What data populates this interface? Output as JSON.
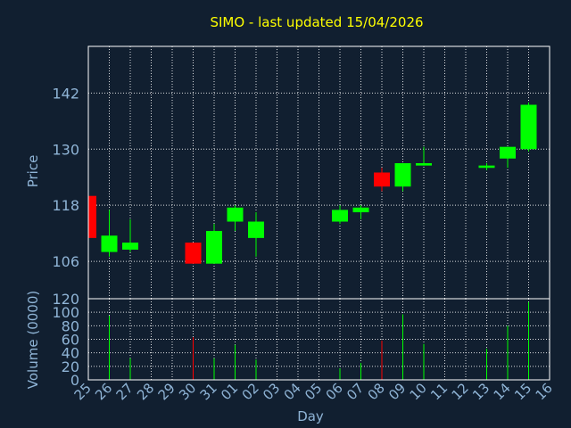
{
  "chart_data": {
    "type": "candlestick",
    "title": "SIMO - last updated 15/04/2026",
    "xlabel": "Day",
    "price_ylabel": "Price",
    "volume_ylabel": "Volume (0000)",
    "price_ylim": [
      98,
      152
    ],
    "price_ticks": [
      106,
      118,
      130,
      142
    ],
    "volume_ylim": [
      0,
      120
    ],
    "volume_ticks": [
      0,
      20,
      40,
      60,
      80,
      100,
      120
    ],
    "categories": [
      "25",
      "26",
      "27",
      "28",
      "29",
      "30",
      "31",
      "01",
      "02",
      "03",
      "04",
      "05",
      "06",
      "07",
      "08",
      "09",
      "10",
      "11",
      "12",
      "13",
      "14",
      "15",
      "16"
    ],
    "grid": true,
    "colors": {
      "background": "#111f30",
      "title": "#ffff00",
      "axis_text": "#8fb4d6",
      "up": "#00ff00",
      "down": "#ff0000",
      "frame": "#ffffff"
    },
    "candles": [
      {
        "day": "25",
        "open": 120.0,
        "high": 120.0,
        "low": 111.0,
        "close": 111.0
      },
      {
        "day": "26",
        "open": 108.0,
        "high": 117.0,
        "low": 107.0,
        "close": 111.5
      },
      {
        "day": "27",
        "open": 108.5,
        "high": 115.0,
        "low": 108.0,
        "close": 110.0
      },
      {
        "day": "30",
        "open": 110.0,
        "high": 110.0,
        "low": 105.5,
        "close": 105.5
      },
      {
        "day": "31",
        "open": 105.5,
        "high": 114.0,
        "low": 105.5,
        "close": 112.5
      },
      {
        "day": "01",
        "open": 114.5,
        "high": 118.0,
        "low": 112.5,
        "close": 117.5
      },
      {
        "day": "02",
        "open": 111.0,
        "high": 116.5,
        "low": 107.0,
        "close": 114.5
      },
      {
        "day": "06",
        "open": 114.5,
        "high": 118.0,
        "low": 114.0,
        "close": 117.0
      },
      {
        "day": "07",
        "open": 116.5,
        "high": 118.0,
        "low": 115.0,
        "close": 117.5
      },
      {
        "day": "08",
        "open": 125.0,
        "high": 126.0,
        "low": 121.0,
        "close": 122.0
      },
      {
        "day": "09",
        "open": 122.0,
        "high": 127.0,
        "low": 121.0,
        "close": 127.0
      },
      {
        "day": "10",
        "open": 126.5,
        "high": 130.5,
        "low": 126.5,
        "close": 127.0
      },
      {
        "day": "13",
        "open": 126.0,
        "high": 127.0,
        "low": 125.5,
        "close": 126.5
      },
      {
        "day": "14",
        "open": 128.0,
        "high": 130.5,
        "low": 126.0,
        "close": 130.5
      },
      {
        "day": "15",
        "open": 130.0,
        "high": 140.0,
        "low": 129.5,
        "close": 139.5
      }
    ],
    "volume": [
      {
        "day": "26",
        "value": 95,
        "direction": "up"
      },
      {
        "day": "27",
        "value": 32,
        "direction": "up"
      },
      {
        "day": "30",
        "value": 63,
        "direction": "down"
      },
      {
        "day": "31",
        "value": 32,
        "direction": "up"
      },
      {
        "day": "01",
        "value": 52,
        "direction": "up"
      },
      {
        "day": "02",
        "value": 30,
        "direction": "up"
      },
      {
        "day": "06",
        "value": 17,
        "direction": "up"
      },
      {
        "day": "07",
        "value": 25,
        "direction": "up"
      },
      {
        "day": "08",
        "value": 58,
        "direction": "down"
      },
      {
        "day": "09",
        "value": 97,
        "direction": "up"
      },
      {
        "day": "10",
        "value": 53,
        "direction": "up"
      },
      {
        "day": "13",
        "value": 46,
        "direction": "up"
      },
      {
        "day": "14",
        "value": 80,
        "direction": "up"
      },
      {
        "day": "15",
        "value": 115,
        "direction": "up"
      }
    ]
  }
}
